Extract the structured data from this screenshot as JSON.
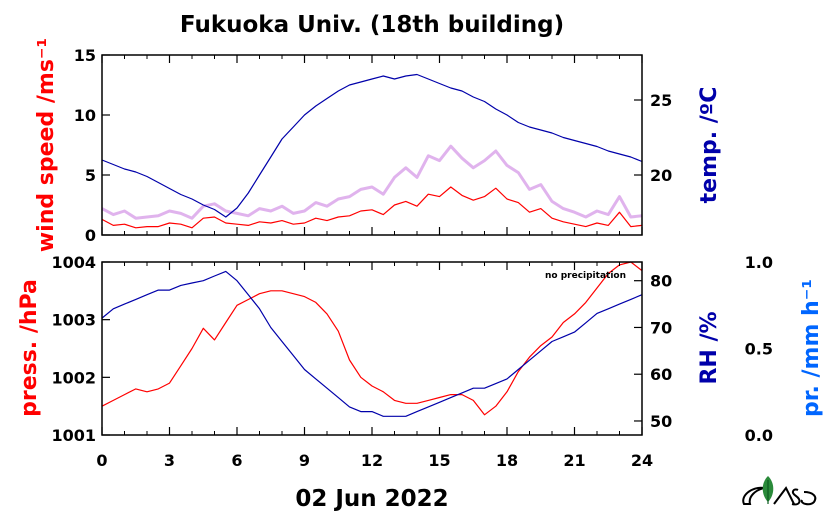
{
  "chart_data": [
    {
      "type": "line",
      "title": "Fukuoka Univ. (18th building)",
      "x": [
        0,
        0.5,
        1,
        1.5,
        2,
        2.5,
        3,
        3.5,
        4,
        4.5,
        5,
        5.5,
        6,
        6.5,
        7,
        7.5,
        8,
        8.5,
        9,
        9.5,
        10,
        10.5,
        11,
        11.5,
        12,
        12.5,
        13,
        13.5,
        14,
        14.5,
        15,
        15.5,
        16,
        16.5,
        17,
        17.5,
        18,
        18.5,
        19,
        19.5,
        20,
        20.5,
        21,
        21.5,
        22,
        22.5,
        23,
        23.5,
        24
      ],
      "xlim": [
        0,
        24
      ],
      "xticks": [
        "0",
        "3",
        "6",
        "9",
        "12",
        "15",
        "18",
        "21",
        "24"
      ],
      "ylabel_left": "wind speed /ms⁻¹",
      "ylabel_right": "temp. /ºC",
      "ylim_left": [
        0,
        15
      ],
      "yticks_left": [
        "0",
        "5",
        "10",
        "15"
      ],
      "ylim_right": [
        16,
        28
      ],
      "yticks_right": [
        "20",
        "25"
      ],
      "series": [
        {
          "axis": "left",
          "color": "#ff0000",
          "values": [
            1.3,
            0.8,
            0.9,
            0.6,
            0.7,
            0.7,
            1.0,
            0.9,
            0.6,
            1.4,
            1.5,
            1.0,
            0.9,
            0.8,
            1.1,
            1.0,
            1.2,
            0.9,
            1.0,
            1.4,
            1.2,
            1.5,
            1.6,
            2.0,
            2.1,
            1.7,
            2.5,
            2.8,
            2.4,
            3.4,
            3.2,
            4.0,
            3.3,
            2.9,
            3.2,
            3.9,
            3.0,
            2.7,
            1.9,
            2.2,
            1.4,
            1.1,
            0.9,
            0.7,
            1.0,
            0.8,
            1.9,
            0.7,
            0.8
          ]
        },
        {
          "axis": "left",
          "color": "#d8a0e8",
          "values": [
            2.2,
            1.7,
            2.0,
            1.4,
            1.5,
            1.6,
            2.0,
            1.8,
            1.4,
            2.4,
            2.6,
            2.0,
            1.8,
            1.6,
            2.2,
            2.0,
            2.4,
            1.8,
            2.0,
            2.7,
            2.4,
            3.0,
            3.2,
            3.8,
            4.0,
            3.4,
            4.8,
            5.6,
            4.8,
            6.6,
            6.2,
            7.4,
            6.4,
            5.6,
            6.2,
            7.0,
            5.8,
            5.2,
            3.8,
            4.2,
            2.8,
            2.2,
            1.9,
            1.5,
            2.0,
            1.7,
            3.2,
            1.5,
            1.6
          ]
        },
        {
          "axis": "right",
          "color": "#0000aa",
          "values": [
            21.0,
            20.7,
            20.4,
            20.2,
            19.9,
            19.5,
            19.1,
            18.7,
            18.4,
            18.0,
            17.7,
            17.2,
            17.8,
            18.8,
            20.0,
            21.2,
            22.4,
            23.2,
            24.0,
            24.6,
            25.1,
            25.6,
            26.0,
            26.2,
            26.4,
            26.6,
            26.4,
            26.6,
            26.7,
            26.4,
            26.1,
            25.8,
            25.6,
            25.2,
            24.9,
            24.4,
            24.0,
            23.5,
            23.2,
            23.0,
            22.8,
            22.5,
            22.3,
            22.1,
            21.9,
            21.6,
            21.4,
            21.2,
            20.9
          ]
        }
      ]
    },
    {
      "type": "line",
      "x": [
        0,
        0.5,
        1,
        1.5,
        2,
        2.5,
        3,
        3.5,
        4,
        4.5,
        5,
        5.5,
        6,
        6.5,
        7,
        7.5,
        8,
        8.5,
        9,
        9.5,
        10,
        10.5,
        11,
        11.5,
        12,
        12.5,
        13,
        13.5,
        14,
        14.5,
        15,
        15.5,
        16,
        16.5,
        17,
        17.5,
        18,
        18.5,
        19,
        19.5,
        20,
        20.5,
        21,
        21.5,
        22,
        22.5,
        23,
        23.5,
        24
      ],
      "xlim": [
        0,
        24
      ],
      "xticks": [
        "0",
        "3",
        "6",
        "9",
        "12",
        "15",
        "18",
        "21",
        "24"
      ],
      "xlabel": "02 Jun 2022",
      "ylabel_left": "press. /hPa",
      "ylabel_right": "RH /%",
      "ylabel_far_right": "pr. /mm h⁻¹",
      "ylim_left": [
        1001,
        1004
      ],
      "yticks_left": [
        "1001",
        "1002",
        "1003",
        "1004"
      ],
      "ylim_right": [
        47,
        84
      ],
      "yticks_right": [
        "50",
        "60",
        "70",
        "80"
      ],
      "ylim_far_right": [
        0.0,
        1.0
      ],
      "yticks_far_right": [
        "0.0",
        "0.5",
        "1.0"
      ],
      "annotation": "no precipitation",
      "series": [
        {
          "axis": "left",
          "color": "#ff0000",
          "values": [
            1001.5,
            1001.6,
            1001.7,
            1001.8,
            1001.75,
            1001.8,
            1001.9,
            1002.2,
            1002.5,
            1002.85,
            1002.65,
            1002.95,
            1003.25,
            1003.35,
            1003.45,
            1003.5,
            1003.5,
            1003.45,
            1003.4,
            1003.3,
            1003.1,
            1002.8,
            1002.3,
            1002.0,
            1001.85,
            1001.75,
            1001.6,
            1001.55,
            1001.55,
            1001.6,
            1001.65,
            1001.7,
            1001.7,
            1001.6,
            1001.35,
            1001.5,
            1001.75,
            1002.1,
            1002.35,
            1002.55,
            1002.7,
            1002.95,
            1003.1,
            1003.3,
            1003.55,
            1003.8,
            1003.95,
            1004.0,
            1003.85
          ]
        },
        {
          "axis": "right",
          "color": "#0000aa",
          "values": [
            72,
            74,
            75,
            76,
            77,
            78,
            78,
            79,
            79.5,
            80,
            81,
            82,
            80,
            77,
            74,
            70,
            67,
            64,
            61,
            59,
            57,
            55,
            53,
            52,
            52,
            51,
            51,
            51,
            52,
            53,
            54,
            55,
            56,
            57,
            57,
            58,
            59,
            61,
            63,
            65,
            67,
            68,
            69,
            71,
            73,
            74,
            75,
            76,
            77
          ]
        }
      ]
    }
  ]
}
